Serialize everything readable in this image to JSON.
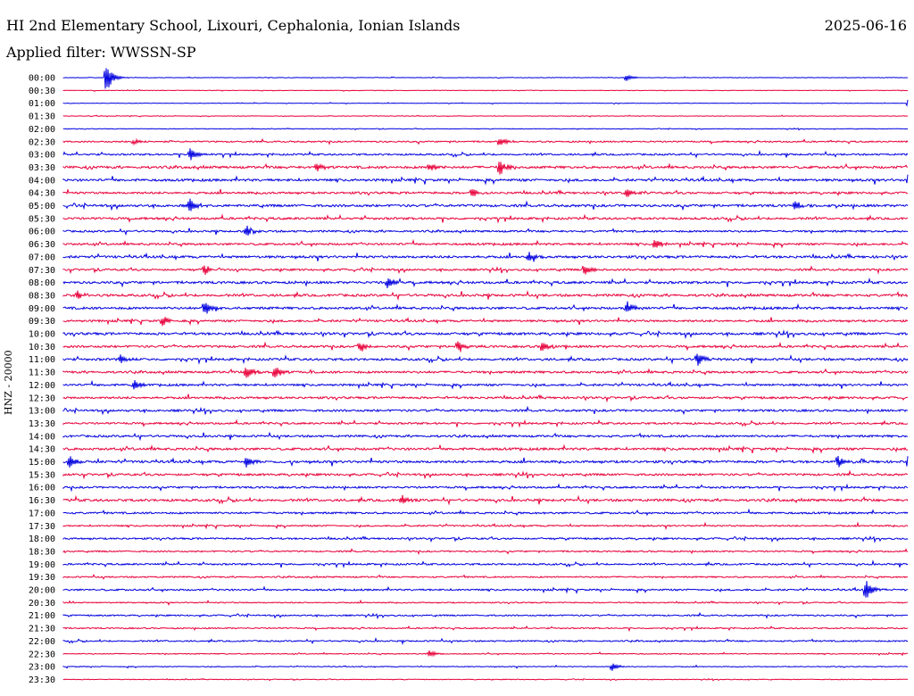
{
  "header": {
    "title": "HI 2nd Elementary School, Lixouri, Cephalonia, Ionian Islands",
    "date": "2025-06-16",
    "filter": "Applied filter: WWSSN-SP"
  },
  "colors": {
    "blue": "#0000e0",
    "red": "#e8003a",
    "text": "#000000"
  },
  "chart_data": {
    "type": "line",
    "title": "HI 2nd Elementary School, Lixouri, Cephalonia, Ionian Islands",
    "ylabel": "HNZ - 20000",
    "row_labels": [
      "00:00",
      "00:30",
      "01:00",
      "01:30",
      "02:00",
      "02:30",
      "03:00",
      "03:30",
      "04:00",
      "04:30",
      "05:00",
      "05:30",
      "06:00",
      "06:30",
      "07:00",
      "07:30",
      "08:00",
      "08:30",
      "09:00",
      "09:30",
      "10:00",
      "10:30",
      "11:00",
      "11:30",
      "12:00",
      "12:30",
      "13:00",
      "13:30",
      "14:00",
      "14:30",
      "15:00",
      "15:30",
      "16:00",
      "16:30",
      "17:00",
      "17:30",
      "18:00",
      "18:30",
      "19:00",
      "19:30",
      "20:00",
      "20:30",
      "21:00",
      "21:30",
      "22:00",
      "22:30",
      "23:00",
      "23:30"
    ],
    "row_colors": [
      "blue",
      "red"
    ],
    "noise_level": [
      0.5,
      0.5,
      0.5,
      0.5,
      0.6,
      1.5,
      1.8,
      2.5,
      2.5,
      2.2,
      2.5,
      2.3,
      2.0,
      2.2,
      2.5,
      2.0,
      2.5,
      2.5,
      2.5,
      2.2,
      2.5,
      2.3,
      2.4,
      2.3,
      2.2,
      2.2,
      2.2,
      2.0,
      2.2,
      2.5,
      2.5,
      2.2,
      2.0,
      2.5,
      2.0,
      1.6,
      1.8,
      1.5,
      1.8,
      1.5,
      1.8,
      1.2,
      1.5,
      1.3,
      1.5,
      1.0,
      0.8,
      0.7
    ],
    "events": [
      {
        "row": 0,
        "minute": 1.5,
        "amplitude": 22
      },
      {
        "row": 0,
        "minute": 20,
        "amplitude": 4
      },
      {
        "row": 2,
        "minute": 30,
        "amplitude": 4
      },
      {
        "row": 5,
        "minute": 2.5,
        "amplitude": 4
      },
      {
        "row": 5,
        "minute": 15.5,
        "amplitude": 6
      },
      {
        "row": 6,
        "minute": 4.5,
        "amplitude": 8
      },
      {
        "row": 7,
        "minute": 9,
        "amplitude": 6
      },
      {
        "row": 7,
        "minute": 13,
        "amplitude": 6
      },
      {
        "row": 7,
        "minute": 15.5,
        "amplitude": 10
      },
      {
        "row": 8,
        "minute": 30,
        "amplitude": 8
      },
      {
        "row": 9,
        "minute": 14.5,
        "amplitude": 6
      },
      {
        "row": 9,
        "minute": 20,
        "amplitude": 6
      },
      {
        "row": 10,
        "minute": 4.5,
        "amplitude": 10
      },
      {
        "row": 10,
        "minute": 26,
        "amplitude": 6
      },
      {
        "row": 12,
        "minute": 6.5,
        "amplitude": 8
      },
      {
        "row": 13,
        "minute": 21,
        "amplitude": 8
      },
      {
        "row": 14,
        "minute": 16.5,
        "amplitude": 6
      },
      {
        "row": 15,
        "minute": 5,
        "amplitude": 7
      },
      {
        "row": 15,
        "minute": 18.5,
        "amplitude": 7
      },
      {
        "row": 16,
        "minute": 11.5,
        "amplitude": 8
      },
      {
        "row": 17,
        "minute": 0.5,
        "amplitude": 5
      },
      {
        "row": 18,
        "minute": 5,
        "amplitude": 10
      },
      {
        "row": 18,
        "minute": 20,
        "amplitude": 9
      },
      {
        "row": 19,
        "minute": 3.5,
        "amplitude": 8
      },
      {
        "row": 21,
        "minute": 10.5,
        "amplitude": 8
      },
      {
        "row": 21,
        "minute": 14,
        "amplitude": 8
      },
      {
        "row": 21,
        "minute": 17,
        "amplitude": 8
      },
      {
        "row": 22,
        "minute": 2,
        "amplitude": 8
      },
      {
        "row": 22,
        "minute": 22.5,
        "amplitude": 10
      },
      {
        "row": 23,
        "minute": 6.5,
        "amplitude": 9
      },
      {
        "row": 23,
        "minute": 7.5,
        "amplitude": 9
      },
      {
        "row": 24,
        "minute": 2.5,
        "amplitude": 6
      },
      {
        "row": 30,
        "minute": 0.2,
        "amplitude": 8
      },
      {
        "row": 30,
        "minute": 6.5,
        "amplitude": 8
      },
      {
        "row": 30,
        "minute": 27.5,
        "amplitude": 8
      },
      {
        "row": 30,
        "minute": 30,
        "amplitude": 12
      },
      {
        "row": 33,
        "minute": 12,
        "amplitude": 6
      },
      {
        "row": 40,
        "minute": 28.5,
        "amplitude": 12
      },
      {
        "row": 45,
        "minute": 13,
        "amplitude": 5
      },
      {
        "row": 46,
        "minute": 19.5,
        "amplitude": 5
      }
    ]
  }
}
